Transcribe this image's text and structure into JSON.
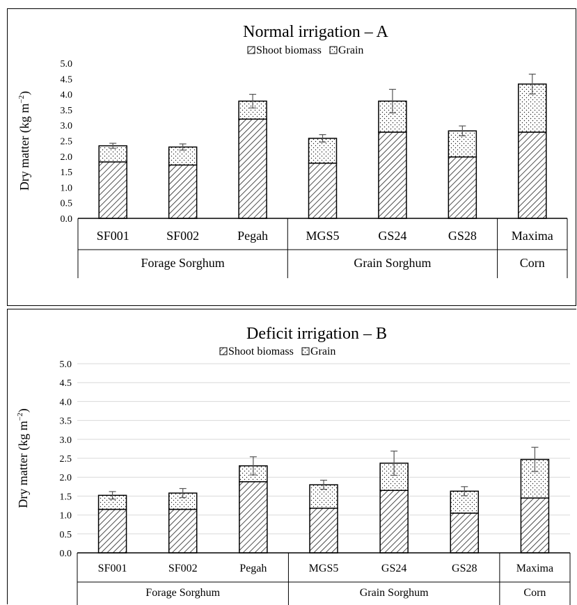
{
  "chart_data": [
    {
      "type": "bar",
      "stacked": true,
      "title": "Normal irrigation – A",
      "ylabel_main": "Dry matter (kg m",
      "ylabel_sup": "−2",
      "ylabel_end": ")",
      "ylim": [
        0,
        5.0
      ],
      "yticks": [
        "0.0",
        "0.5",
        "1.0",
        "1.5",
        "2.0",
        "2.5",
        "3.0",
        "3.5",
        "4.0",
        "4.5",
        "5.0"
      ],
      "categories": [
        "SF001",
        "SF002",
        "Pegah",
        "MGS5",
        "GS24",
        "GS28",
        "Maxima"
      ],
      "groups": [
        {
          "label": "Forage Sorghum",
          "count": 3
        },
        {
          "label": "Grain Sorghum",
          "count": 3
        },
        {
          "label": "Corn",
          "count": 1
        }
      ],
      "series": [
        {
          "name": "Shoot biomass",
          "values": [
            1.82,
            1.72,
            3.2,
            1.78,
            2.78,
            1.98,
            2.78
          ]
        },
        {
          "name": "Grain",
          "values": [
            0.52,
            0.58,
            0.58,
            0.8,
            1.0,
            0.84,
            1.55
          ]
        }
      ],
      "error": [
        0.08,
        0.1,
        0.22,
        0.12,
        0.38,
        0.16,
        0.32
      ],
      "legend": "top-center",
      "grid": false
    },
    {
      "type": "bar",
      "stacked": true,
      "title": "Deficit irrigation – B",
      "ylabel_main": "Dry matter (kg m",
      "ylabel_sup": "−2",
      "ylabel_end": ")",
      "ylim": [
        0,
        5.0
      ],
      "yticks": [
        "0.0",
        "0.5",
        "1.0",
        "1.5",
        "2.0",
        "2.5",
        "3.0",
        "3.5",
        "4.0",
        "4.5",
        "5.0"
      ],
      "categories": [
        "SF001",
        "SF002",
        "Pegah",
        "MGS5",
        "GS24",
        "GS28",
        "Maxima"
      ],
      "groups": [
        {
          "label": "Forage Sorghum",
          "count": 3
        },
        {
          "label": "Grain Sorghum",
          "count": 3
        },
        {
          "label": "Corn",
          "count": 1
        }
      ],
      "series": [
        {
          "name": "Shoot biomass",
          "values": [
            1.15,
            1.15,
            1.88,
            1.18,
            1.65,
            1.05,
            1.45
          ]
        },
        {
          "name": "Grain",
          "values": [
            0.37,
            0.43,
            0.42,
            0.62,
            0.72,
            0.58,
            1.02
          ]
        }
      ],
      "error": [
        0.1,
        0.12,
        0.24,
        0.12,
        0.32,
        0.12,
        0.32
      ],
      "legend": "top-center",
      "grid": true
    }
  ]
}
